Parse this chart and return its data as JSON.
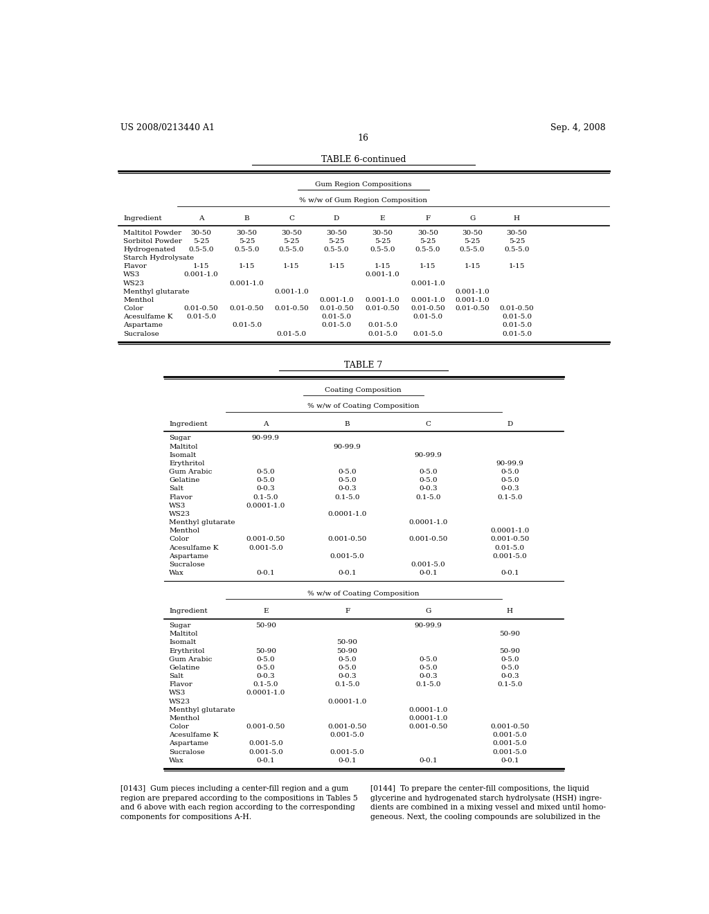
{
  "header_left": "US 2008/0213440 A1",
  "header_right": "Sep. 4, 2008",
  "page_number": "16",
  "table6_title": "TABLE 6-continued",
  "table6_subtitle1": "Gum Region Compositions",
  "table6_subtitle2": "% w/w of Gum Region Composition",
  "table6_cols": [
    "Ingredient",
    "A",
    "B",
    "C",
    "D",
    "E",
    "F",
    "G",
    "H"
  ],
  "table6_rows": [
    [
      "Maltitol Powder",
      "30-50",
      "30-50",
      "30-50",
      "30-50",
      "30-50",
      "30-50",
      "30-50",
      "30-50"
    ],
    [
      "Sorbitol Powder",
      "5-25",
      "5-25",
      "5-25",
      "5-25",
      "5-25",
      "5-25",
      "5-25",
      "5-25"
    ],
    [
      "Hydrogenated",
      "0.5-5.0",
      "0.5-5.0",
      "0.5-5.0",
      "0.5-5.0",
      "0.5-5.0",
      "0.5-5.0",
      "0.5-5.0",
      "0.5-5.0"
    ],
    [
      "Starch Hydrolysate",
      "",
      "",
      "",
      "",
      "",
      "",
      "",
      ""
    ],
    [
      "Flavor",
      "1-15",
      "1-15",
      "1-15",
      "1-15",
      "1-15",
      "1-15",
      "1-15",
      "1-15"
    ],
    [
      "WS3",
      "0.001-1.0",
      "",
      "",
      "",
      "0.001-1.0",
      "",
      "",
      ""
    ],
    [
      "WS23",
      "",
      "0.001-1.0",
      "",
      "",
      "",
      "0.001-1.0",
      "",
      ""
    ],
    [
      "Menthyl glutarate",
      "",
      "",
      "0.001-1.0",
      "",
      "",
      "",
      "0.001-1.0",
      ""
    ],
    [
      "Menthol",
      "",
      "",
      "",
      "0.001-1.0",
      "0.001-1.0",
      "0.001-1.0",
      "0.001-1.0",
      ""
    ],
    [
      "Color",
      "0.01-0.50",
      "0.01-0.50",
      "0.01-0.50",
      "0.01-0.50",
      "0.01-0.50",
      "0.01-0.50",
      "0.01-0.50",
      "0.01-0.50"
    ],
    [
      "Acesulfame K",
      "0.01-5.0",
      "",
      "",
      "0.01-5.0",
      "",
      "0.01-5.0",
      "",
      "0.01-5.0"
    ],
    [
      "Aspartame",
      "",
      "0.01-5.0",
      "",
      "0.01-5.0",
      "0.01-5.0",
      "",
      "",
      "0.01-5.0"
    ],
    [
      "Sucralose",
      "",
      "",
      "0.01-5.0",
      "",
      "0.01-5.0",
      "0.01-5.0",
      "",
      "0.01-5.0"
    ]
  ],
  "table7_title": "TABLE 7",
  "table7_subtitle1": "Coating Composition",
  "table7_subtitle2": "% w/w of Coating Composition",
  "table7_cols_AD": [
    "Ingredient",
    "A",
    "B",
    "C",
    "D"
  ],
  "table7_rows_AD": [
    [
      "Sugar",
      "90-99.9",
      "",
      "",
      ""
    ],
    [
      "Maltitol",
      "",
      "90-99.9",
      "",
      ""
    ],
    [
      "Isomalt",
      "",
      "",
      "90-99.9",
      ""
    ],
    [
      "Erythritol",
      "",
      "",
      "",
      "90-99.9"
    ],
    [
      "Gum Arabic",
      "0-5.0",
      "0-5.0",
      "0-5.0",
      "0-5.0"
    ],
    [
      "Gelatine",
      "0-5.0",
      "0-5.0",
      "0-5.0",
      "0-5.0"
    ],
    [
      "Salt",
      "0-0.3",
      "0-0.3",
      "0-0.3",
      "0-0.3"
    ],
    [
      "Flavor",
      "0.1-5.0",
      "0.1-5.0",
      "0.1-5.0",
      "0.1-5.0"
    ],
    [
      "WS3",
      "0.0001-1.0",
      "",
      "",
      ""
    ],
    [
      "WS23",
      "",
      "0.0001-1.0",
      "",
      ""
    ],
    [
      "Menthyl glutarate",
      "",
      "",
      "0.0001-1.0",
      ""
    ],
    [
      "Menthol",
      "",
      "",
      "",
      "0.0001-1.0"
    ],
    [
      "Color",
      "0.001-0.50",
      "0.001-0.50",
      "0.001-0.50",
      "0.001-0.50"
    ],
    [
      "Acesulfame K",
      "0.001-5.0",
      "",
      "",
      "0.01-5.0"
    ],
    [
      "Aspartame",
      "",
      "0.001-5.0",
      "",
      "0.001-5.0"
    ],
    [
      "Sucralose",
      "",
      "",
      "0.001-5.0",
      ""
    ],
    [
      "Wax",
      "0-0.1",
      "0-0.1",
      "0-0.1",
      "0-0.1"
    ]
  ],
  "table7_subtitle2b": "% w/w of Coating Composition",
  "table7_cols_EH": [
    "Ingredient",
    "E",
    "F",
    "G",
    "H"
  ],
  "table7_rows_EH": [
    [
      "Sugar",
      "50-90",
      "",
      "90-99.9",
      ""
    ],
    [
      "Maltitol",
      "",
      "",
      "",
      "50-90"
    ],
    [
      "Isomalt",
      "",
      "50-90",
      "",
      ""
    ],
    [
      "Erythritol",
      "50-90",
      "50-90",
      "",
      "50-90"
    ],
    [
      "Gum Arabic",
      "0-5.0",
      "0-5.0",
      "0-5.0",
      "0-5.0"
    ],
    [
      "Gelatine",
      "0-5.0",
      "0-5.0",
      "0-5.0",
      "0-5.0"
    ],
    [
      "Salt",
      "0-0.3",
      "0-0.3",
      "0-0.3",
      "0-0.3"
    ],
    [
      "Flavor",
      "0.1-5.0",
      "0.1-5.0",
      "0.1-5.0",
      "0.1-5.0"
    ],
    [
      "WS3",
      "0.0001-1.0",
      "",
      "",
      ""
    ],
    [
      "WS23",
      "",
      "0.0001-1.0",
      "",
      ""
    ],
    [
      "Menthyl glutarate",
      "",
      "",
      "0.0001-1.0",
      ""
    ],
    [
      "Menthol",
      "",
      "",
      "0.0001-1.0",
      ""
    ],
    [
      "Color",
      "0.001-0.50",
      "0.001-0.50",
      "0.001-0.50",
      "0.001-0.50"
    ],
    [
      "Acesulfame K",
      "",
      "0.001-5.0",
      "",
      "0.001-5.0"
    ],
    [
      "Aspartame",
      "0.001-5.0",
      "",
      "",
      "0.001-5.0"
    ],
    [
      "Sucralose",
      "0.001-5.0",
      "0.001-5.0",
      "",
      "0.001-5.0"
    ],
    [
      "Wax",
      "0-0.1",
      "0-0.1",
      "0-0.1",
      "0-0.1"
    ]
  ],
  "footnote_left": "[0143]  Gum pieces including a center-fill region and a gum\nregion are prepared according to the compositions in Tables 5\nand 6 above with each region according to the corresponding\ncomponents for compositions A-H.",
  "footnote_right": "[0144]  To prepare the center-fill compositions, the liquid\nglycerine and hydrogenated starch hydrolysate (HSH) ingre-\ndients are combined in a mixing vessel and mixed until homo-\ngeneous. Next, the cooling compounds are solubilized in the"
}
